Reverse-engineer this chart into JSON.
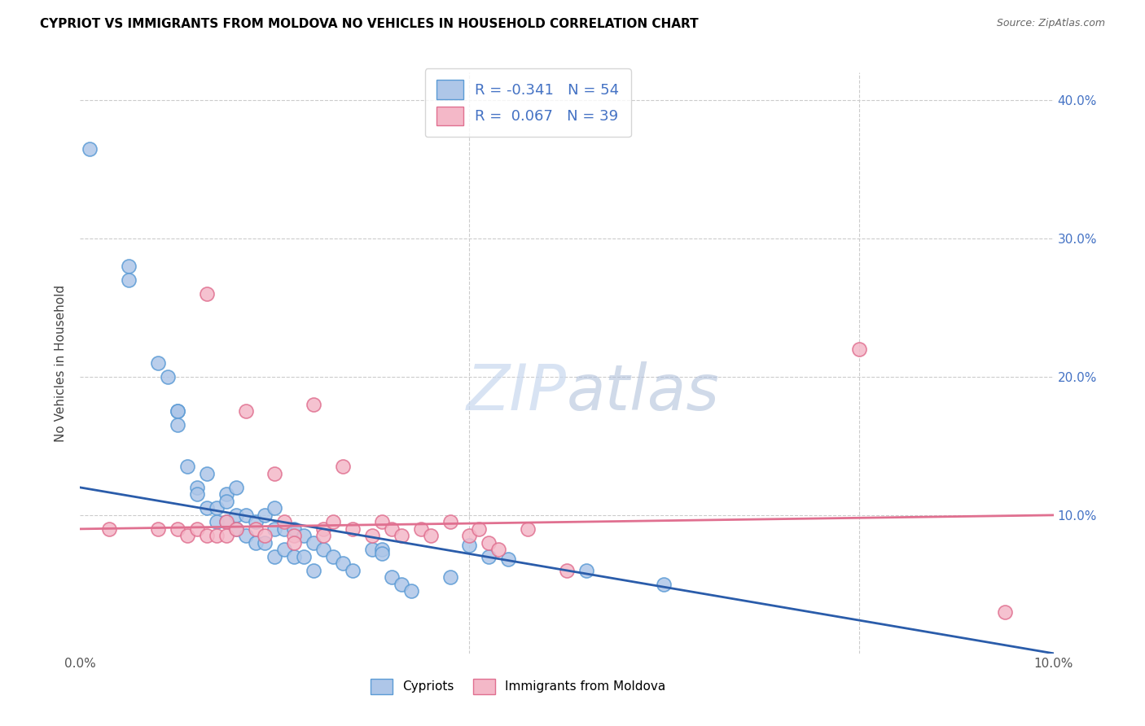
{
  "title": "CYPRIOT VS IMMIGRANTS FROM MOLDOVA NO VEHICLES IN HOUSEHOLD CORRELATION CHART",
  "source": "Source: ZipAtlas.com",
  "ylabel": "No Vehicles in Household",
  "xlim": [
    0.0,
    0.1
  ],
  "ylim": [
    0.0,
    0.42
  ],
  "watermark": "ZIPatlas",
  "cypriot_color": "#aec6e8",
  "cypriot_edge_color": "#5b9bd5",
  "moldova_color": "#f4b8c8",
  "moldova_edge_color": "#e07090",
  "trend_cypriot_color": "#2a5caa",
  "trend_moldova_color": "#e07090",
  "right_tick_color": "#4472c4",
  "grid_color": "#cccccc",
  "cypriot_x": [
    0.001,
    0.005,
    0.005,
    0.008,
    0.009,
    0.01,
    0.01,
    0.01,
    0.011,
    0.012,
    0.012,
    0.013,
    0.013,
    0.014,
    0.014,
    0.015,
    0.015,
    0.015,
    0.016,
    0.016,
    0.016,
    0.017,
    0.017,
    0.018,
    0.018,
    0.019,
    0.019,
    0.02,
    0.02,
    0.02,
    0.021,
    0.021,
    0.022,
    0.022,
    0.023,
    0.023,
    0.024,
    0.024,
    0.025,
    0.026,
    0.027,
    0.028,
    0.03,
    0.031,
    0.031,
    0.032,
    0.033,
    0.034,
    0.038,
    0.04,
    0.042,
    0.044,
    0.052,
    0.06
  ],
  "cypriot_y": [
    0.365,
    0.28,
    0.27,
    0.21,
    0.2,
    0.175,
    0.175,
    0.165,
    0.135,
    0.12,
    0.115,
    0.13,
    0.105,
    0.105,
    0.095,
    0.115,
    0.11,
    0.095,
    0.12,
    0.1,
    0.09,
    0.1,
    0.085,
    0.095,
    0.08,
    0.1,
    0.08,
    0.105,
    0.09,
    0.07,
    0.09,
    0.075,
    0.09,
    0.07,
    0.085,
    0.07,
    0.08,
    0.06,
    0.075,
    0.07,
    0.065,
    0.06,
    0.075,
    0.075,
    0.072,
    0.055,
    0.05,
    0.045,
    0.055,
    0.078,
    0.07,
    0.068,
    0.06,
    0.05
  ],
  "moldova_x": [
    0.003,
    0.008,
    0.01,
    0.011,
    0.012,
    0.013,
    0.013,
    0.014,
    0.015,
    0.015,
    0.016,
    0.017,
    0.018,
    0.019,
    0.02,
    0.021,
    0.022,
    0.022,
    0.024,
    0.025,
    0.025,
    0.026,
    0.027,
    0.028,
    0.03,
    0.031,
    0.032,
    0.033,
    0.035,
    0.036,
    0.038,
    0.04,
    0.041,
    0.042,
    0.043,
    0.046,
    0.05,
    0.08,
    0.095
  ],
  "moldova_y": [
    0.09,
    0.09,
    0.09,
    0.085,
    0.09,
    0.26,
    0.085,
    0.085,
    0.095,
    0.085,
    0.09,
    0.175,
    0.09,
    0.085,
    0.13,
    0.095,
    0.085,
    0.08,
    0.18,
    0.09,
    0.085,
    0.095,
    0.135,
    0.09,
    0.085,
    0.095,
    0.09,
    0.085,
    0.09,
    0.085,
    0.095,
    0.085,
    0.09,
    0.08,
    0.075,
    0.09,
    0.06,
    0.22,
    0.03
  ]
}
